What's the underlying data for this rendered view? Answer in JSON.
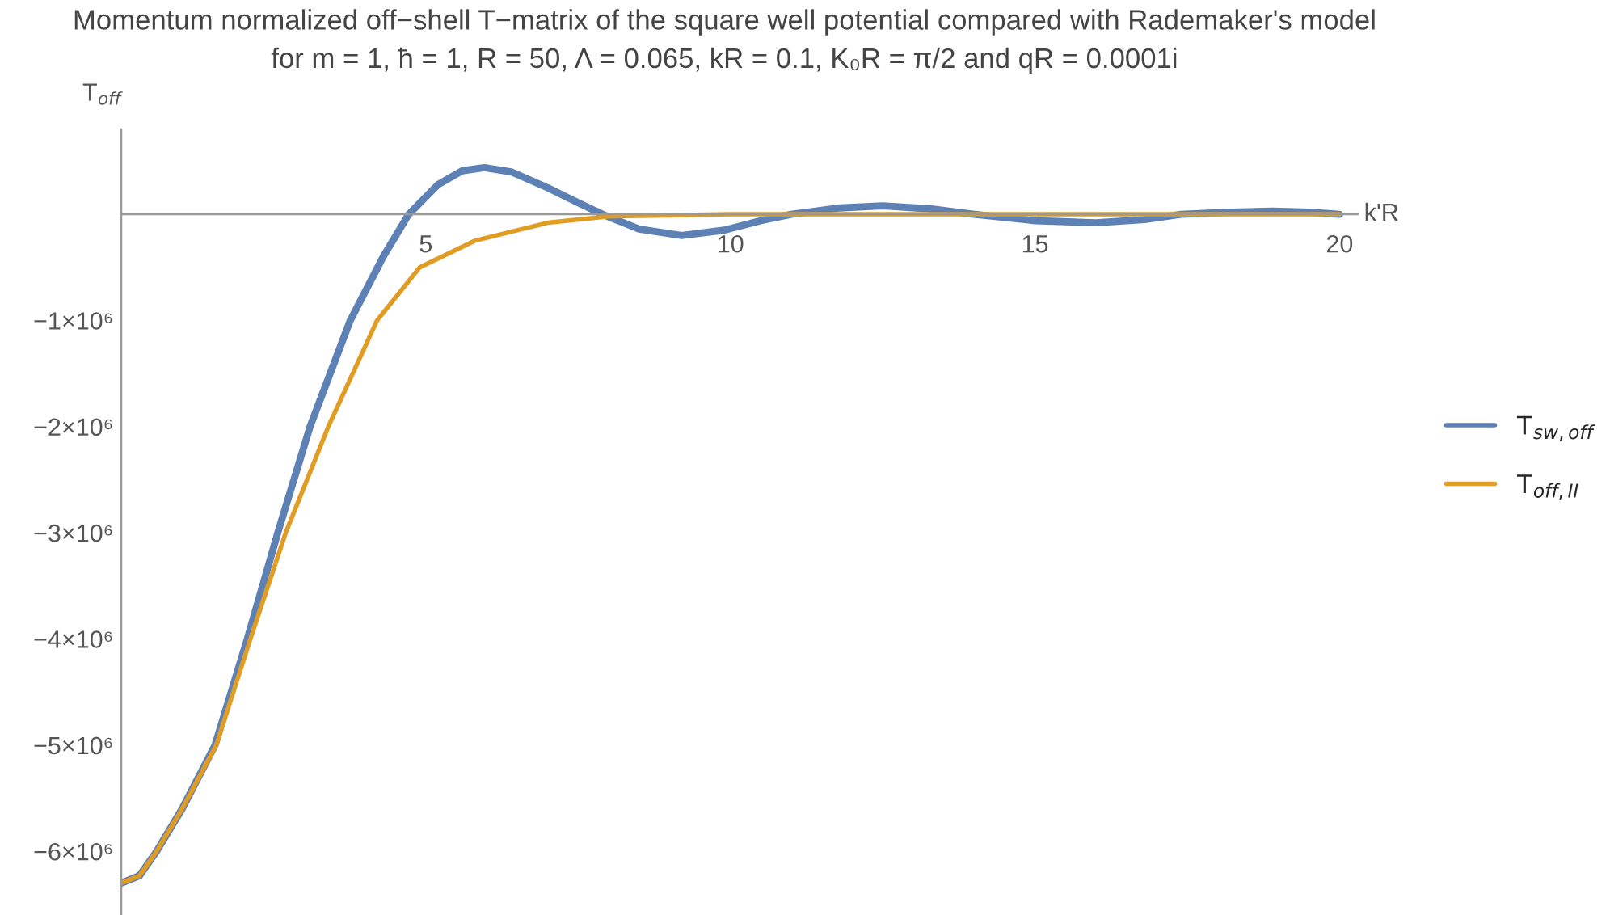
{
  "chart_data": {
    "type": "line",
    "title": "Momentum normalized off−shell T−matrix of the square well potential compared with Rademaker's model\nfor m = 1, ħ = 1, R = 50, Λ = 0.065, kR = 0.1, K₀R = π/2 and qR = 0.0001i",
    "xlabel": "k'R",
    "ylabel": "T$_{off}$",
    "series": [
      {
        "name": "T$_{sw,off}$",
        "color": "#5e81b5",
        "x": [
          0,
          0.3,
          0.58,
          1.0,
          1.54,
          2.07,
          2.57,
          3.1,
          3.76,
          4.3,
          4.72,
          5.2,
          5.6,
          5.96,
          6.4,
          7.0,
          7.5,
          7.9,
          8.5,
          9.2,
          9.9,
          10.5,
          11.0,
          11.8,
          12.5,
          13.3,
          14.0,
          15.0,
          16.0,
          16.8,
          17.4,
          18.2,
          18.9,
          19.5,
          20
        ],
        "values": [
          -6300000,
          -6230000,
          -6000000,
          -5600000,
          -5000000,
          -4000000,
          -3000000,
          -2000000,
          -1000000,
          -400000,
          0,
          280000,
          410000,
          440000,
          400000,
          250000,
          110000,
          0,
          -140000,
          -200000,
          -150000,
          -60000,
          0,
          60000,
          80000,
          50000,
          0,
          -60000,
          -80000,
          -50000,
          0,
          20000,
          30000,
          20000,
          0
        ]
      },
      {
        "name": "T$_{off,II}$",
        "color": "#e19c24",
        "x": [
          0,
          0.3,
          0.58,
          1.0,
          1.56,
          2.12,
          2.7,
          3.4,
          4.2,
          4.9,
          5.8,
          7.0,
          8.0,
          9.0,
          10.0,
          12.0,
          15.0,
          20
        ],
        "values": [
          -6300000,
          -6230000,
          -6000000,
          -5600000,
          -5000000,
          -4000000,
          -3000000,
          -2000000,
          -1000000,
          -500000,
          -250000,
          -80000,
          -20000,
          -10000,
          0,
          0,
          0,
          0
        ]
      }
    ],
    "xlim": [
      0,
      20.3
    ],
    "ylim": [
      -6600000,
      800000
    ],
    "xticks": [
      5,
      10,
      15,
      20
    ],
    "yticks": [
      {
        "value": -6000000,
        "label": "−6×10⁶"
      },
      {
        "value": -5000000,
        "label": "−5×10⁶"
      },
      {
        "value": -4000000,
        "label": "−4×10⁶"
      },
      {
        "value": -3000000,
        "label": "−3×10⁶"
      },
      {
        "value": -2000000,
        "label": "−2×10⁶"
      },
      {
        "value": -1000000,
        "label": "−1×10⁶"
      }
    ],
    "legend": "right",
    "grid": false,
    "line_style": "solid",
    "marker": "none"
  }
}
